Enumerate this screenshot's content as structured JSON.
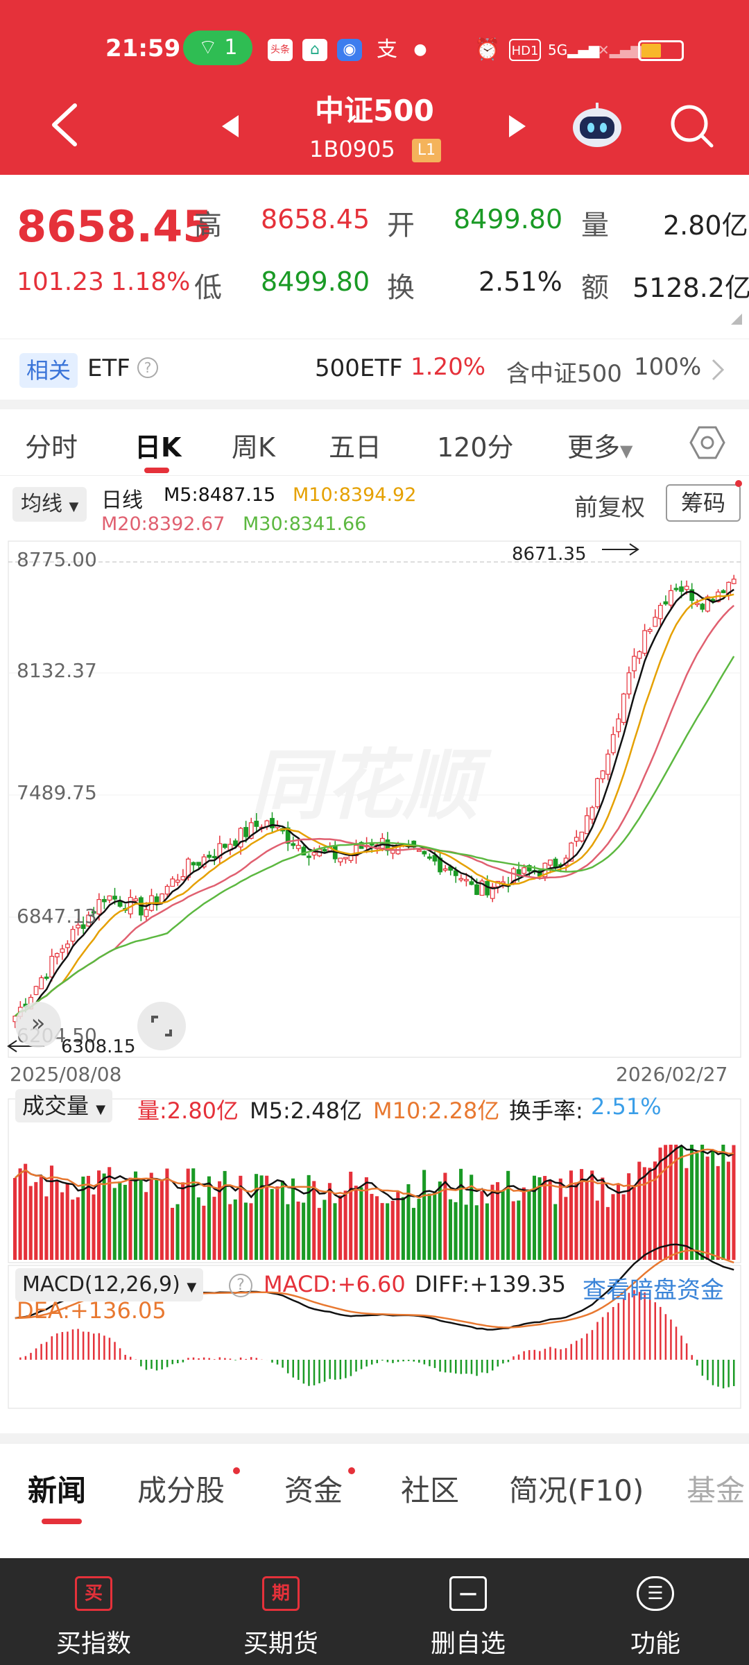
{
  "status_bar": {
    "time": "21:59",
    "wifi_badge": "1",
    "network": "5G",
    "hd": "HD1"
  },
  "header": {
    "title": "中证500",
    "code": "1B0905",
    "level": "L1"
  },
  "quote": {
    "price": "8658.45",
    "change": "101.23",
    "change_pct": "1.18%",
    "high_label": "高",
    "high": "8658.45",
    "open_label": "开",
    "open": "8499.80",
    "vol_label": "量",
    "volume": "2.80亿",
    "low_label": "低",
    "low": "8499.80",
    "turn_label": "换",
    "turnover": "2.51%",
    "amt_label": "额",
    "amount": "5128.2亿"
  },
  "etf": {
    "tag": "相关",
    "label": "ETF",
    "name": "500ETF",
    "pct": "1.20%",
    "contains": "含中证500",
    "weight": "100%"
  },
  "tabs": [
    "分时",
    "日K",
    "周K",
    "五日",
    "120分",
    "更多"
  ],
  "ma": {
    "selector": "均线",
    "period": "日线",
    "m5": "M5:8487.15",
    "m10": "M10:8394.92",
    "m20": "M20:8392.67",
    "m30": "M30:8341.66",
    "adjust": "前复权",
    "chips": "筹码"
  },
  "kline": {
    "y_labels": [
      "8775.00",
      "8132.37",
      "7489.75",
      "6847.13",
      "6204.50"
    ],
    "max_label": "8671.35",
    "min_label": "6308.15",
    "start_date": "2025/08/08",
    "end_date": "2026/02/27"
  },
  "volume": {
    "selector": "成交量",
    "vol": "量:2.80亿",
    "m5": "M5:2.48亿",
    "m10": "M10:2.28亿",
    "turn_label": "换手率:",
    "turn_val": "2.51%"
  },
  "macd": {
    "selector": "MACD(12,26,9)",
    "macd": "MACD:+6.60",
    "diff": "DIFF:+139.35",
    "link": "查看暗盘资金",
    "dea": "DEA:+136.05"
  },
  "bottom_tabs": [
    "新闻",
    "成分股",
    "资金",
    "社区",
    "简况(F10)",
    "基金"
  ],
  "footer": [
    {
      "icon": "买",
      "label": "买指数"
    },
    {
      "icon": "期",
      "label": "买期货"
    },
    {
      "icon": "—",
      "label": "删自选"
    },
    {
      "icon": "☰",
      "label": "功能"
    }
  ],
  "colors": {
    "brand": "#e5313a",
    "up": "#e5313a",
    "down": "#1a9a25",
    "m5": "#111111",
    "m10": "#e5a000",
    "m20": "#e06070",
    "m30": "#5cb840"
  }
}
